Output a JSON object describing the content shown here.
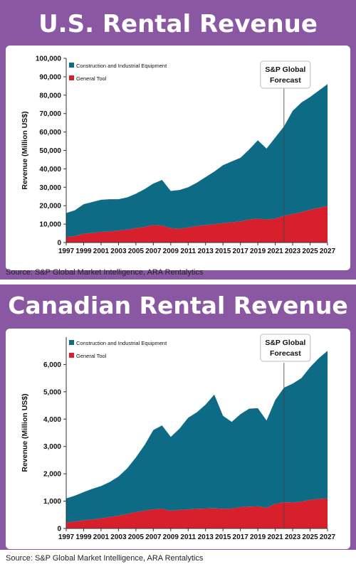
{
  "panels": [
    {
      "banner_title": "U.S. Rental Revenue",
      "source": "Source: S&P Global Market Intelligence, ARA Rentalytics",
      "chart_data": {
        "type": "area",
        "ylabel": "Revenue (Million US$)",
        "xlabel": "",
        "ylim": [
          0,
          100000
        ],
        "yticks": [
          0,
          10000,
          20000,
          30000,
          40000,
          50000,
          60000,
          70000,
          80000,
          90000,
          100000
        ],
        "ytick_labels": [
          "0",
          "10,000",
          "20,000",
          "30,000",
          "40,000",
          "50,000",
          "60,000",
          "70,000",
          "80,000",
          "90,000",
          "100,000"
        ],
        "x": [
          1997,
          1998,
          1999,
          2000,
          2001,
          2002,
          2003,
          2004,
          2005,
          2006,
          2007,
          2008,
          2009,
          2010,
          2011,
          2012,
          2013,
          2014,
          2015,
          2016,
          2017,
          2018,
          2019,
          2020,
          2021,
          2022,
          2023,
          2024,
          2025,
          2026,
          2027
        ],
        "xtick_labels": [
          "1997",
          "1999",
          "2001",
          "2003",
          "2005",
          "2007",
          "2009",
          "2011",
          "2013",
          "2015",
          "2017",
          "2019",
          "2021",
          "2023",
          "2025",
          "2027"
        ],
        "stacked": true,
        "series": [
          {
            "name": "General Tool",
            "color": "#d8202c",
            "values": [
              3000,
              3500,
              4800,
              5200,
              5800,
              6000,
              6500,
              7000,
              7800,
              8500,
              9500,
              9200,
              7800,
              7500,
              8200,
              9000,
              9500,
              10000,
              10500,
              11000,
              11500,
              12500,
              13000,
              12500,
              13000,
              14500,
              15500,
              16500,
              17800,
              18800,
              19800
            ]
          },
          {
            "name": "Construction and Industrial Equipment",
            "color": "#0e6b86",
            "values": [
              13000,
              14000,
              16000,
              16800,
              17400,
              17500,
              17000,
              17500,
              18700,
              20500,
              22500,
              24800,
              20200,
              21000,
              21800,
              23500,
              26000,
              28500,
              31500,
              33000,
              34500,
              38000,
              42500,
              38500,
              44000,
              48500,
              56000,
              59500,
              61200,
              63700,
              66200
            ]
          }
        ],
        "forecast_start": 2022,
        "forecast_label": [
          "S&P Global",
          "Forecast"
        ],
        "legend": "top-left"
      }
    },
    {
      "banner_title": "Canadian Rental Revenue",
      "source": "Source: S&P Global Market Intelligence, ARA Rentalytics",
      "chart_data": {
        "type": "area",
        "ylabel": "Revenue (Million US$)",
        "xlabel": "",
        "ylim": [
          0,
          7000
        ],
        "yticks": [
          0,
          1000,
          2000,
          3000,
          4000,
          5000,
          6000
        ],
        "ytick_labels": [
          "0",
          "1,000",
          "2,000",
          "3,000",
          "4,000",
          "5,000",
          "6,000"
        ],
        "x": [
          1997,
          1998,
          1999,
          2000,
          2001,
          2002,
          2003,
          2004,
          2005,
          2006,
          2007,
          2008,
          2009,
          2010,
          2011,
          2012,
          2013,
          2014,
          2015,
          2016,
          2017,
          2018,
          2019,
          2020,
          2021,
          2022,
          2023,
          2024,
          2025,
          2026,
          2027
        ],
        "xtick_labels": [
          "1997",
          "1999",
          "2001",
          "2003",
          "2005",
          "2007",
          "2009",
          "2011",
          "2013",
          "2015",
          "2017",
          "2019",
          "2021",
          "2023",
          "2025",
          "2027"
        ],
        "stacked": true,
        "series": [
          {
            "name": "General Tool",
            "color": "#d8202c",
            "values": [
              220,
              250,
              300,
              330,
              370,
              420,
              470,
              530,
              600,
              650,
              700,
              720,
              650,
              680,
              700,
              720,
              730,
              740,
              720,
              730,
              780,
              800,
              810,
              760,
              900,
              960,
              950,
              980,
              1050,
              1080,
              1100
            ]
          },
          {
            "name": "Construction and Industrial Equipment",
            "color": "#0e6b86",
            "values": [
              880,
              950,
              1030,
              1120,
              1180,
              1280,
              1430,
              1670,
              2000,
              2400,
              2900,
              3050,
              2700,
              2970,
              3350,
              3530,
              3800,
              4160,
              3400,
              3170,
              3400,
              3580,
              3590,
              3190,
              3800,
              4190,
              4350,
              4520,
              4850,
              5150,
              5400
            ]
          }
        ],
        "forecast_start": 2022,
        "forecast_label": [
          "S&P Global",
          "Forecast"
        ],
        "legend": "top-left"
      }
    }
  ]
}
